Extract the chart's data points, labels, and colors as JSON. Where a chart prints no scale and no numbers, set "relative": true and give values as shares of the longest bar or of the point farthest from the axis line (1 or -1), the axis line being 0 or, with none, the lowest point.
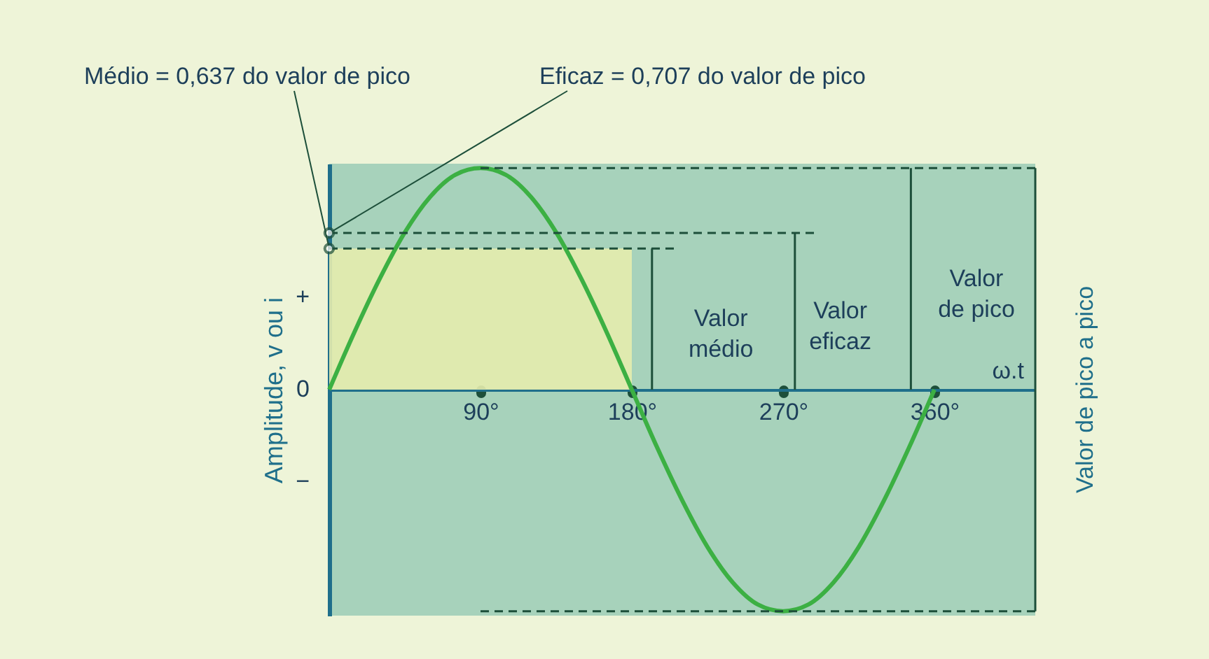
{
  "chart_data": {
    "type": "line",
    "xlabel": "ω.t",
    "ylabel": "Amplitude, v ou i",
    "x": [
      0,
      15,
      30,
      45,
      60,
      75,
      90,
      105,
      120,
      135,
      150,
      165,
      180,
      195,
      210,
      225,
      240,
      255,
      270,
      285,
      300,
      315,
      330,
      345,
      360
    ],
    "series": [
      {
        "color": "#3cb043",
        "values": [
          0,
          0.26,
          0.5,
          0.71,
          0.87,
          0.97,
          1,
          0.97,
          0.87,
          0.71,
          0.5,
          0.26,
          0,
          -0.26,
          -0.5,
          -0.71,
          -0.87,
          -0.97,
          -1,
          -0.97,
          -0.87,
          -0.71,
          -0.5,
          -0.26,
          0
        ]
      }
    ],
    "relative": true,
    "xlim": [
      0,
      420
    ],
    "xticks": [
      {
        "value": 90,
        "label": "90°"
      },
      {
        "value": 180,
        "label": "180°"
      },
      {
        "value": 270,
        "label": "270°"
      },
      {
        "value": 360,
        "label": "360°"
      }
    ],
    "ref_lines": [
      {
        "axis": "y",
        "value": 0.637,
        "label": "Valor\nmédio",
        "line_style": "dashed"
      },
      {
        "axis": "y",
        "value": 0.707,
        "label": "Valor\neficaz",
        "line_style": "dashed"
      },
      {
        "axis": "y",
        "value": 1,
        "label": "Valor\nde pico",
        "line_style": "dashed"
      },
      {
        "axis": "y",
        "value": -1,
        "label": null,
        "line_style": "dashed"
      }
    ],
    "annotations": [
      "+",
      "0",
      "−",
      {
        "text": "Médio = 0,637 do valor de pico",
        "x": 0,
        "y": 0.637
      },
      {
        "text": "Eficaz = 0,707 do valor de pico",
        "x": 0,
        "y": 0.707
      },
      "Valor de pico a pico"
    ],
    "grid": false
  }
}
